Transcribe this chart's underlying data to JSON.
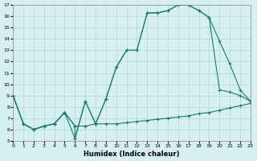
{
  "xlabel": "Humidex (Indice chaleur)",
  "ylabel": "",
  "bg_color": "#d6f0f0",
  "line_color": "#1a7a6e",
  "grid_color": "#b0d8d8",
  "xlim": [
    0,
    23
  ],
  "ylim": [
    5,
    17
  ],
  "xticks": [
    0,
    1,
    2,
    3,
    4,
    5,
    6,
    7,
    8,
    9,
    10,
    11,
    12,
    13,
    14,
    15,
    16,
    17,
    18,
    19,
    20,
    21,
    22,
    23
  ],
  "yticks": [
    5,
    6,
    7,
    8,
    9,
    10,
    11,
    12,
    13,
    14,
    15,
    16,
    17
  ],
  "line1_x": [
    0,
    1,
    2,
    3,
    4,
    5,
    6,
    7,
    8,
    9,
    10,
    11,
    12,
    13,
    14,
    15,
    16,
    17,
    18,
    19,
    20,
    21,
    22,
    23
  ],
  "line1_y": [
    9.0,
    6.5,
    6.0,
    6.3,
    6.5,
    7.5,
    6.3,
    6.3,
    6.5,
    6.5,
    6.5,
    6.6,
    6.7,
    6.8,
    6.9,
    7.0,
    7.1,
    7.2,
    7.4,
    7.5,
    7.7,
    7.9,
    8.1,
    8.3
  ],
  "line2_x": [
    0,
    1,
    2,
    3,
    4,
    5,
    6,
    6,
    7,
    8,
    9,
    10,
    11,
    12,
    13,
    14,
    15,
    16,
    17,
    18,
    19,
    20,
    21,
    22,
    23
  ],
  "line2_y": [
    9.0,
    6.5,
    6.0,
    6.3,
    6.5,
    7.5,
    6.3,
    5.2,
    8.5,
    6.5,
    8.7,
    11.5,
    13.0,
    13.0,
    16.3,
    16.3,
    16.5,
    17.0,
    17.0,
    16.5,
    15.9,
    13.8,
    11.8,
    9.5,
    8.5
  ],
  "line3_x": [
    0,
    1,
    2,
    3,
    4,
    5,
    6,
    7,
    8,
    9,
    10,
    11,
    12,
    13,
    14,
    15,
    16,
    17,
    18,
    19,
    20,
    21,
    22,
    23
  ],
  "line3_y": [
    9.0,
    6.5,
    6.0,
    6.3,
    6.5,
    7.5,
    5.2,
    8.5,
    6.5,
    8.7,
    11.5,
    13.0,
    13.0,
    16.3,
    16.3,
    16.5,
    17.0,
    17.0,
    16.5,
    15.9,
    9.5,
    9.3,
    9.0,
    8.5
  ]
}
